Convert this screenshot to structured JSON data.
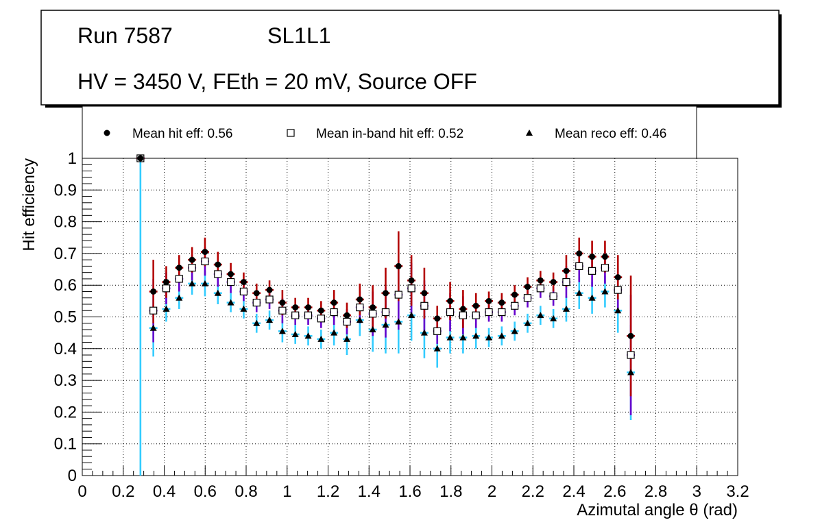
{
  "title_box": {
    "run": "Run 7587",
    "layer": "SL1L1",
    "conditions": "HV = 3450 V, FEth = 20 mV, Source OFF"
  },
  "colors": {
    "hit_err": "#b30000",
    "inband_err": "#6600cc",
    "reco_err": "#33ccff",
    "marker": "#000000"
  },
  "chart_data": {
    "type": "scatter",
    "xlabel": "Azimutal angle θ (rad)",
    "ylabel": "Hit efficiency",
    "xlim": [
      0,
      3.2
    ],
    "ylim": [
      0,
      1
    ],
    "x_ticks": [
      "0",
      "0.2",
      "0.4",
      "0.6",
      "0.8",
      "1",
      "1.2",
      "1.4",
      "1.6",
      "1.8",
      "2",
      "2.2",
      "2.4",
      "2.6",
      "2.8",
      "3",
      "3.2"
    ],
    "y_ticks": [
      "0",
      "0.1",
      "0.2",
      "0.3",
      "0.4",
      "0.5",
      "0.6",
      "0.7",
      "0.8",
      "0.9",
      "1"
    ],
    "grid": true,
    "legend": [
      {
        "label": "Mean hit  eff: 0.56",
        "marker": "circle"
      },
      {
        "label": "Mean in-band hit eff: 0.52",
        "marker": "open-square"
      },
      {
        "label": "Mean reco eff: 0.46",
        "marker": "triangle"
      }
    ],
    "x_half_width": 0.02,
    "series": [
      {
        "name": "hit efficiency",
        "marker": "circle",
        "x": [
          0.284,
          0.347,
          0.41,
          0.473,
          0.536,
          0.599,
          0.662,
          0.725,
          0.788,
          0.851,
          0.914,
          0.977,
          1.04,
          1.103,
          1.166,
          1.229,
          1.292,
          1.355,
          1.418,
          1.481,
          1.544,
          1.607,
          1.67,
          1.733,
          1.796,
          1.859,
          1.922,
          1.985,
          2.048,
          2.111,
          2.174,
          2.237,
          2.3,
          2.363,
          2.426,
          2.489,
          2.552,
          2.615,
          2.678
        ],
        "y": [
          1.0,
          0.58,
          0.61,
          0.655,
          0.68,
          0.705,
          0.665,
          0.635,
          0.61,
          0.575,
          0.585,
          0.545,
          0.53,
          0.53,
          0.52,
          0.545,
          0.505,
          0.555,
          0.53,
          0.575,
          0.66,
          0.615,
          0.575,
          0.495,
          0.55,
          0.525,
          0.535,
          0.55,
          0.545,
          0.57,
          0.595,
          0.615,
          0.61,
          0.645,
          0.7,
          0.69,
          0.69,
          0.625,
          0.44
        ],
        "err": [
          0.0,
          0.1,
          0.05,
          0.04,
          0.04,
          0.045,
          0.04,
          0.035,
          0.03,
          0.03,
          0.03,
          0.04,
          0.03,
          0.03,
          0.03,
          0.04,
          0.04,
          0.05,
          0.07,
          0.08,
          0.11,
          0.08,
          0.08,
          0.04,
          0.06,
          0.06,
          0.04,
          0.03,
          0.03,
          0.03,
          0.03,
          0.03,
          0.03,
          0.05,
          0.05,
          0.05,
          0.05,
          0.07,
          0.19
        ]
      },
      {
        "name": "in-band hit efficiency",
        "marker": "open-square",
        "x": [
          0.284,
          0.347,
          0.41,
          0.473,
          0.536,
          0.599,
          0.662,
          0.725,
          0.788,
          0.851,
          0.914,
          0.977,
          1.04,
          1.103,
          1.166,
          1.229,
          1.292,
          1.355,
          1.418,
          1.481,
          1.544,
          1.607,
          1.67,
          1.733,
          1.796,
          1.859,
          1.922,
          1.985,
          2.048,
          2.111,
          2.174,
          2.237,
          2.3,
          2.363,
          2.426,
          2.489,
          2.552,
          2.615,
          2.678
        ],
        "y": [
          1.0,
          0.52,
          0.59,
          0.62,
          0.655,
          0.675,
          0.635,
          0.61,
          0.58,
          0.545,
          0.555,
          0.52,
          0.505,
          0.505,
          0.495,
          0.515,
          0.485,
          0.53,
          0.51,
          0.515,
          0.57,
          0.59,
          0.535,
          0.455,
          0.515,
          0.505,
          0.505,
          0.515,
          0.515,
          0.535,
          0.56,
          0.59,
          0.565,
          0.61,
          0.66,
          0.645,
          0.655,
          0.585,
          0.38
        ],
        "err": [
          0.0,
          0.1,
          0.05,
          0.04,
          0.04,
          0.045,
          0.04,
          0.035,
          0.03,
          0.03,
          0.03,
          0.04,
          0.03,
          0.03,
          0.03,
          0.04,
          0.04,
          0.05,
          0.07,
          0.08,
          0.11,
          0.08,
          0.08,
          0.04,
          0.06,
          0.06,
          0.04,
          0.03,
          0.03,
          0.03,
          0.03,
          0.03,
          0.03,
          0.05,
          0.05,
          0.05,
          0.05,
          0.07,
          0.19
        ]
      },
      {
        "name": "reco efficiency",
        "marker": "triangle",
        "x": [
          0.284,
          0.347,
          0.41,
          0.473,
          0.536,
          0.599,
          0.662,
          0.725,
          0.788,
          0.851,
          0.914,
          0.977,
          1.04,
          1.103,
          1.166,
          1.229,
          1.292,
          1.355,
          1.418,
          1.481,
          1.544,
          1.607,
          1.67,
          1.733,
          1.796,
          1.859,
          1.922,
          1.985,
          2.048,
          2.111,
          2.174,
          2.237,
          2.3,
          2.363,
          2.426,
          2.489,
          2.552,
          2.615,
          2.678
        ],
        "y": [
          1.0,
          0.465,
          0.525,
          0.56,
          0.605,
          0.605,
          0.575,
          0.545,
          0.525,
          0.48,
          0.49,
          0.455,
          0.445,
          0.44,
          0.43,
          0.45,
          0.43,
          0.49,
          0.46,
          0.475,
          0.485,
          0.505,
          0.45,
          0.4,
          0.435,
          0.435,
          0.44,
          0.435,
          0.44,
          0.455,
          0.48,
          0.505,
          0.495,
          0.525,
          0.575,
          0.56,
          0.58,
          0.52,
          0.325
        ],
        "err": [
          1.0,
          0.09,
          0.04,
          0.035,
          0.035,
          0.04,
          0.035,
          0.03,
          0.03,
          0.03,
          0.03,
          0.035,
          0.03,
          0.03,
          0.03,
          0.04,
          0.05,
          0.05,
          0.07,
          0.09,
          0.1,
          0.08,
          0.08,
          0.06,
          0.05,
          0.05,
          0.04,
          0.03,
          0.03,
          0.03,
          0.03,
          0.03,
          0.03,
          0.04,
          0.05,
          0.05,
          0.05,
          0.07,
          0.15
        ]
      }
    ]
  }
}
